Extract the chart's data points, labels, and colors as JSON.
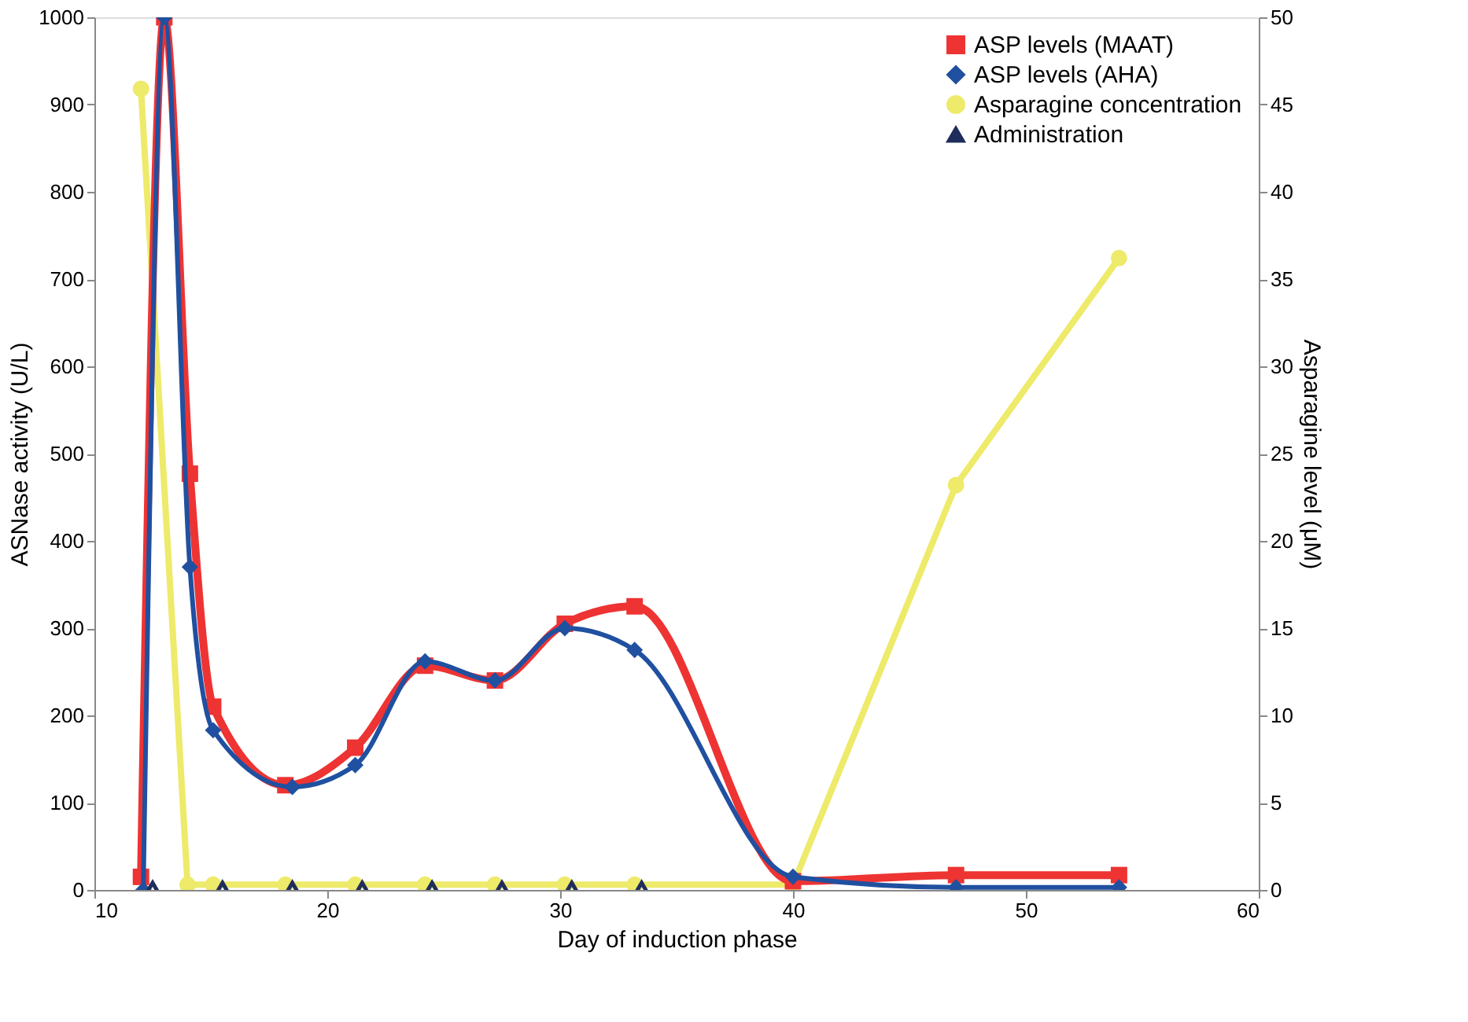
{
  "chart_data": {
    "type": "line",
    "xlabel": "Day of induction phase",
    "ylabel": "ASNase activity (U/L)",
    "y2label": "Asparagine level (μM)",
    "xlim": [
      10,
      60
    ],
    "xticks": [
      10,
      20,
      30,
      40,
      50,
      60
    ],
    "ylim": [
      0,
      1000
    ],
    "yticks": [
      0,
      100,
      200,
      300,
      400,
      500,
      600,
      700,
      800,
      900,
      1000
    ],
    "y2lim": [
      0,
      50
    ],
    "y2ticks": [
      0,
      5,
      10,
      15,
      20,
      25,
      30,
      35,
      40,
      45,
      50
    ],
    "grid": false,
    "legend": "top right",
    "series": [
      {
        "name": "ASP levels (MAAT)",
        "color": "#ee3333",
        "type": "line",
        "marker": "square",
        "x": [
          12,
          13,
          14.1,
          15.1,
          18.2,
          21.2,
          24.2,
          27.2,
          30.2,
          33.2,
          40,
          47,
          54
        ],
        "values": [
          15,
          1000,
          477,
          210,
          120,
          163,
          257,
          240,
          305,
          325,
          10,
          17,
          17
        ]
      },
      {
        "name": "ASP levels (AHA)",
        "color": "#2050a0",
        "type": "line",
        "marker": "diamond",
        "x": [
          12.1,
          13,
          14.1,
          15.1,
          18.5,
          21.2,
          24.2,
          27.2,
          30.2,
          33.2,
          40,
          47,
          54
        ],
        "values": [
          0,
          1000,
          370,
          183,
          118,
          143,
          262,
          240,
          300,
          275,
          15,
          3,
          3
        ]
      },
      {
        "name": "Asparagine concentration",
        "color": "#eeea6a",
        "type": "line",
        "marker": "circle",
        "axis": "y2",
        "x": [
          12,
          14,
          15.1,
          18.2,
          21.2,
          24.2,
          27.2,
          30.2,
          33.2,
          40,
          47,
          54
        ],
        "values": [
          45.9,
          0.3,
          0.3,
          0.3,
          0.3,
          0.3,
          0.3,
          0.3,
          0.3,
          0.3,
          23.2,
          36.2
        ]
      },
      {
        "name": "Administration",
        "color": "#1f2d5c",
        "type": "scatter",
        "marker": "triangle",
        "x": [
          12.5,
          15.5,
          18.5,
          21.5,
          24.5,
          27.5,
          30.5,
          33.5
        ],
        "values": [
          0,
          0,
          0,
          0,
          0,
          0,
          0,
          0
        ]
      }
    ]
  }
}
